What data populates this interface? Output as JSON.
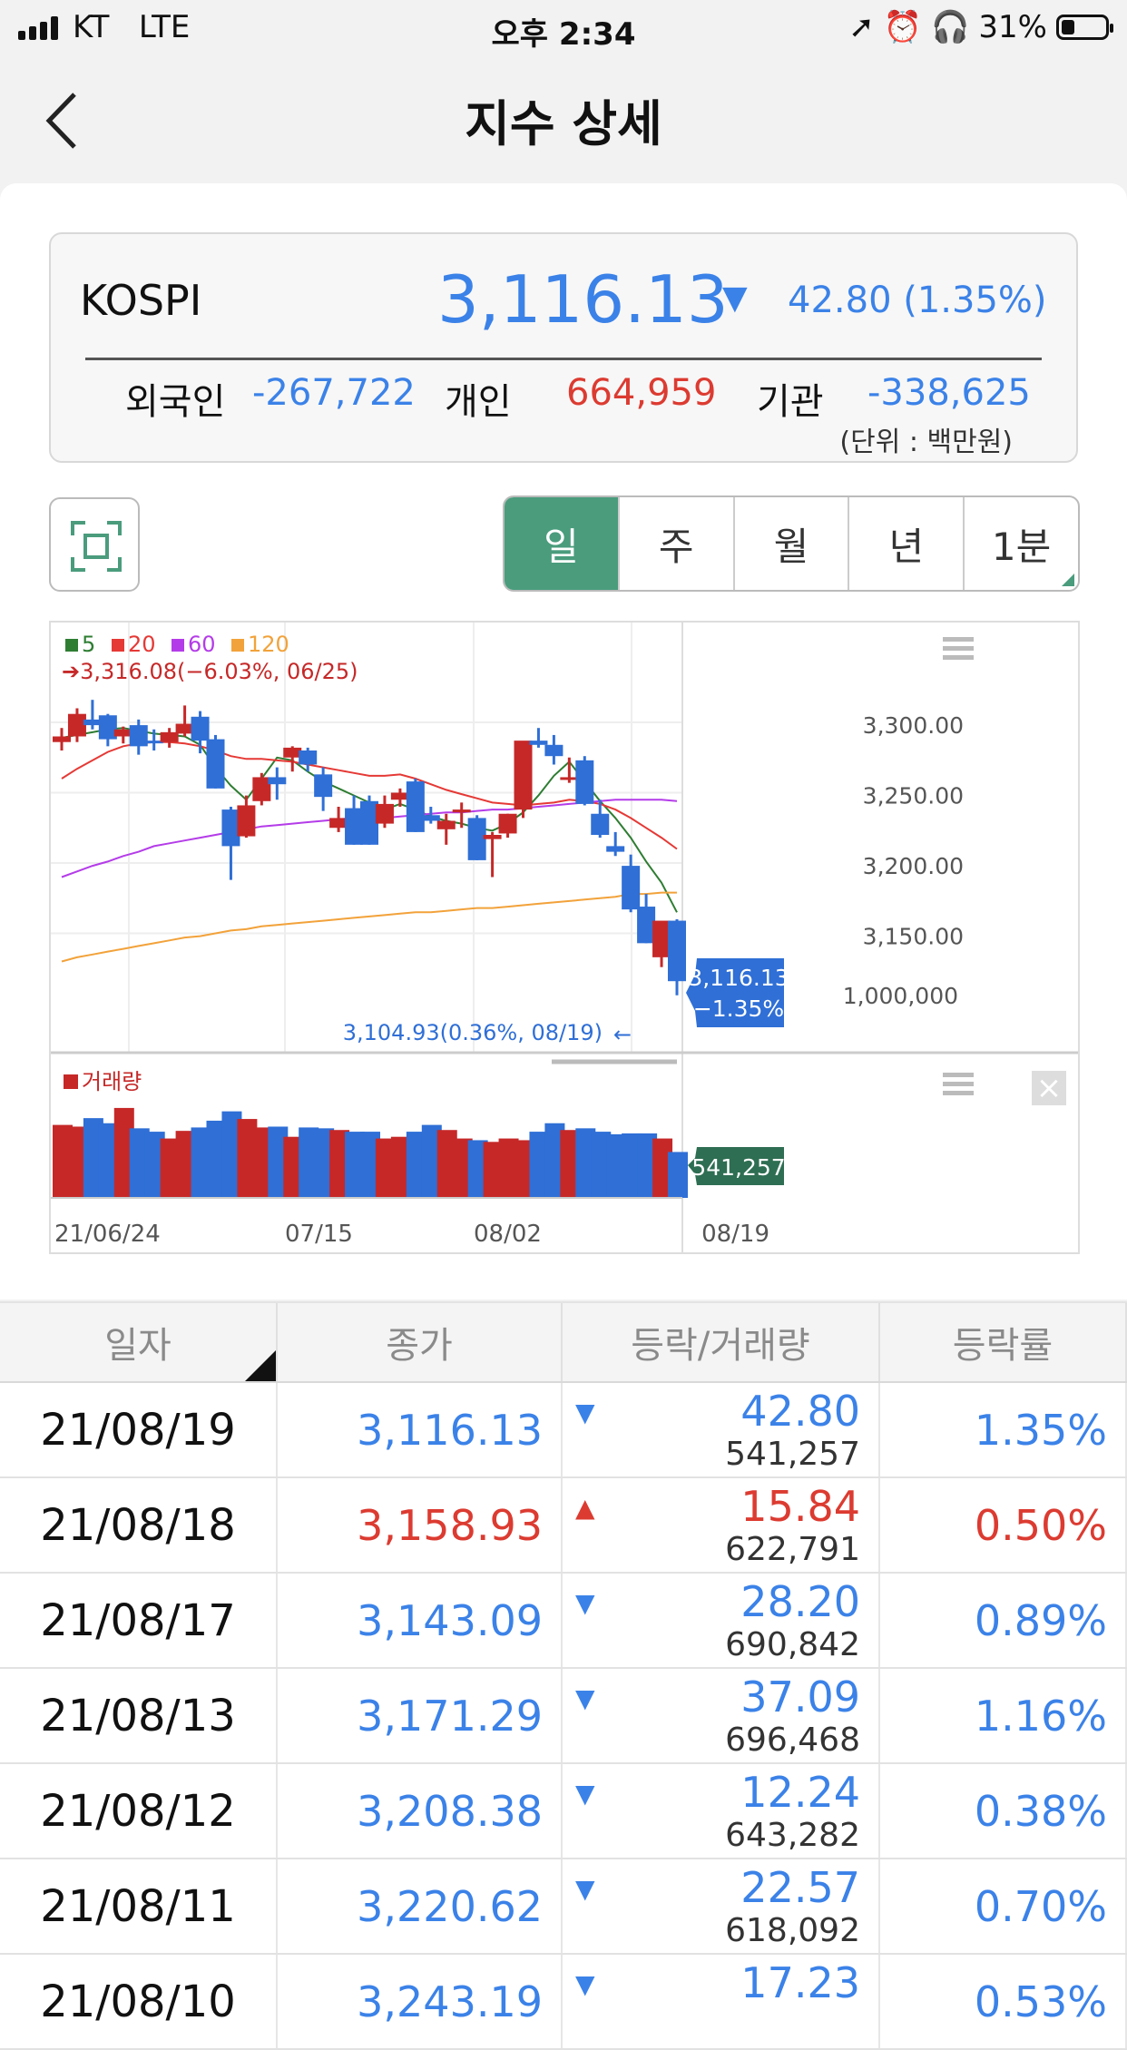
{
  "status": {
    "carrier": "KT",
    "network": "LTE",
    "time": "오후 2:34",
    "battery": "31%",
    "battery_level": 0.31
  },
  "header": {
    "title": "지수 상세"
  },
  "index": {
    "name": "KOSPI",
    "value": "3,116.13",
    "direction": "down",
    "change": "42.80 (1.35%)",
    "investors": [
      {
        "label": "외국인",
        "value": "-267,722",
        "color": "#3b82e8"
      },
      {
        "label": "개인",
        "value": "664,959",
        "color": "#dc3b31"
      },
      {
        "label": "기관",
        "value": "-338,625",
        "color": "#3b82e8"
      }
    ],
    "unit_note": "(단위 : 백만원)"
  },
  "periods": [
    {
      "label": "일",
      "active": true
    },
    {
      "label": "주"
    },
    {
      "label": "월"
    },
    {
      "label": "년"
    },
    {
      "label": "1분"
    }
  ],
  "chart_data": {
    "type": "candlestick",
    "legend": [
      {
        "label": "5",
        "color": "#2e7d32"
      },
      {
        "label": "20",
        "color": "#e53935"
      },
      {
        "label": "60",
        "color": "#b43ce8"
      },
      {
        "label": "120",
        "color": "#f2a23a"
      }
    ],
    "high_note": "3,316.08(−6.03%, 06/25)",
    "low_note": "3,104.93(0.36%, 08/19)",
    "y_ticks": [
      "3,300.00",
      "3,250.00",
      "3,200.00",
      "3,150.00"
    ],
    "ylim": [
      3100,
      3320
    ],
    "current_tag": {
      "value": "3,116.13",
      "change": "−1.35%"
    },
    "volume_label": "거래량",
    "volume_tick": "1,000,000",
    "volume_tag": "541,257",
    "x_ticks": [
      "21/06/24",
      "07/15",
      "08/02",
      "08/19"
    ],
    "candles": [
      [
        3286,
        3296,
        3280,
        3290
      ],
      [
        3290,
        3310,
        3286,
        3306
      ],
      [
        3302,
        3316,
        3295,
        3298
      ],
      [
        3305,
        3306,
        3283,
        3288
      ],
      [
        3290,
        3297,
        3285,
        3295
      ],
      [
        3298,
        3302,
        3277,
        3283
      ],
      [
        3287,
        3295,
        3280,
        3286
      ],
      [
        3286,
        3296,
        3282,
        3293
      ],
      [
        3292,
        3312,
        3290,
        3299
      ],
      [
        3304,
        3308,
        3278,
        3287
      ],
      [
        3288,
        3291,
        3253,
        3253
      ],
      [
        3238,
        3240,
        3188,
        3212
      ],
      [
        3219,
        3248,
        3218,
        3241
      ],
      [
        3244,
        3264,
        3241,
        3261
      ],
      [
        3261,
        3268,
        3245,
        3256
      ],
      [
        3275,
        3283,
        3265,
        3282
      ],
      [
        3280,
        3282,
        3265,
        3270
      ],
      [
        3263,
        3268,
        3237,
        3247
      ],
      [
        3225,
        3240,
        3222,
        3232
      ],
      [
        3239,
        3248,
        3213,
        3213
      ],
      [
        3244,
        3248,
        3213,
        3213
      ],
      [
        3228,
        3248,
        3225,
        3242
      ],
      [
        3245,
        3253,
        3240,
        3250
      ],
      [
        3258,
        3260,
        3222,
        3222
      ],
      [
        3234,
        3240,
        3228,
        3230
      ],
      [
        3224,
        3235,
        3213,
        3230
      ],
      [
        3236,
        3243,
        3225,
        3238
      ],
      [
        3232,
        3234,
        3202,
        3202
      ],
      [
        3217,
        3222,
        3190,
        3220
      ],
      [
        3221,
        3235,
        3218,
        3235
      ],
      [
        3238,
        3286,
        3232,
        3287
      ],
      [
        3287,
        3296,
        3282,
        3284
      ],
      [
        3284,
        3291,
        3270,
        3276
      ],
      [
        3260,
        3275,
        3257,
        3261
      ],
      [
        3273,
        3276,
        3241,
        3242
      ],
      [
        3235,
        3245,
        3218,
        3220
      ],
      [
        3212,
        3222,
        3205,
        3208
      ],
      [
        3198,
        3206,
        3165,
        3167
      ],
      [
        3169,
        3178,
        3143,
        3143
      ],
      [
        3133,
        3158,
        3126,
        3159
      ],
      [
        3159,
        3160,
        3106,
        3116
      ]
    ],
    "ma5": [
      3289,
      3291,
      3293,
      3295,
      3296,
      3294,
      3292,
      3291,
      3290,
      3284,
      3268,
      3255,
      3245,
      3260,
      3275,
      3273,
      3265,
      3258,
      3253,
      3248,
      3243,
      3238,
      3242,
      3238,
      3233,
      3230,
      3228,
      3225,
      3223,
      3228,
      3236,
      3248,
      3262,
      3272,
      3258,
      3244,
      3232,
      3218,
      3201,
      3186,
      3165
    ],
    "ma20": [
      3260,
      3267,
      3273,
      3279,
      3283,
      3285,
      3286,
      3286,
      3285,
      3283,
      3280,
      3276,
      3274,
      3274,
      3273,
      3272,
      3270,
      3268,
      3266,
      3264,
      3262,
      3262,
      3263,
      3260,
      3256,
      3252,
      3249,
      3246,
      3243,
      3242,
      3241,
      3242,
      3243,
      3245,
      3244,
      3242,
      3238,
      3232,
      3225,
      3218,
      3210
    ],
    "ma60": [
      3190,
      3194,
      3198,
      3201,
      3205,
      3208,
      3212,
      3214,
      3216,
      3218,
      3220,
      3222,
      3224,
      3226,
      3227,
      3228,
      3229,
      3230,
      3231,
      3232,
      3232,
      3232,
      3233,
      3234,
      3235,
      3236,
      3236,
      3237,
      3238,
      3238,
      3239,
      3240,
      3241,
      3242,
      3243,
      3244,
      3245,
      3245,
      3245,
      3245,
      3244
    ],
    "ma120": [
      3130,
      3133,
      3135,
      3137,
      3139,
      3141,
      3143,
      3145,
      3147,
      3148,
      3150,
      3152,
      3153,
      3155,
      3156,
      3157,
      3158,
      3159,
      3160,
      3161,
      3162,
      3163,
      3164,
      3165,
      3165,
      3166,
      3167,
      3168,
      3168,
      3169,
      3170,
      3171,
      3172,
      3173,
      3174,
      3175,
      3176,
      3178,
      3178,
      3179,
      3179
    ],
    "volume": [
      860,
      840,
      940,
      880,
      1060,
      820,
      780,
      700,
      790,
      830,
      910,
      1020,
      930,
      830,
      840,
      720,
      830,
      820,
      800,
      780,
      780,
      700,
      720,
      780,
      860,
      800,
      700,
      680,
      660,
      700,
      680,
      780,
      880,
      800,
      820,
      780,
      750,
      760,
      760,
      700,
      541
    ]
  },
  "table": {
    "headers": [
      "일자",
      "종가",
      "등락/거래량",
      "등락률"
    ],
    "rows": [
      {
        "date": "21/08/19",
        "close": "3,116.13",
        "dir": "down",
        "change": "42.80",
        "volume": "541,257",
        "rate": "1.35%"
      },
      {
        "date": "21/08/18",
        "close": "3,158.93",
        "dir": "up",
        "change": "15.84",
        "volume": "622,791",
        "rate": "0.50%"
      },
      {
        "date": "21/08/17",
        "close": "3,143.09",
        "dir": "down",
        "change": "28.20",
        "volume": "690,842",
        "rate": "0.89%"
      },
      {
        "date": "21/08/13",
        "close": "3,171.29",
        "dir": "down",
        "change": "37.09",
        "volume": "696,468",
        "rate": "1.16%"
      },
      {
        "date": "21/08/12",
        "close": "3,208.38",
        "dir": "down",
        "change": "12.24",
        "volume": "643,282",
        "rate": "0.38%"
      },
      {
        "date": "21/08/11",
        "close": "3,220.62",
        "dir": "down",
        "change": "22.57",
        "volume": "618,092",
        "rate": "0.70%"
      },
      {
        "date": "21/08/10",
        "close": "3,243.19",
        "dir": "down",
        "change": "17.23",
        "volume": "",
        "rate": "0.53%"
      }
    ]
  }
}
